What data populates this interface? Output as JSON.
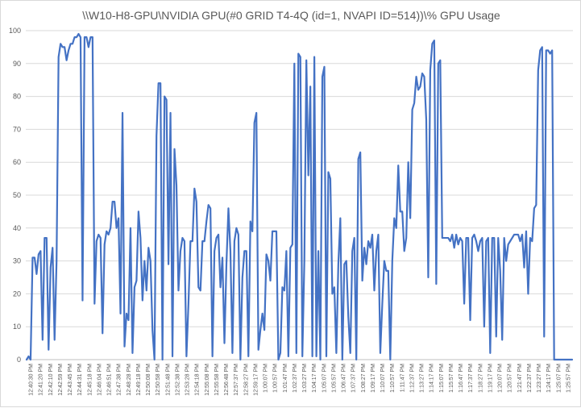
{
  "chart_data": {
    "type": "line",
    "title": "\\\\W10-H8-GPU\\NVIDIA GPU(#0 GRID T4-4Q (id=1, NVAPI ID=514))\\% GPU Usage",
    "xlabel": "",
    "ylabel": "",
    "ylim": [
      0,
      100
    ],
    "yticks": [
      0,
      10,
      20,
      30,
      40,
      50,
      60,
      70,
      80,
      90,
      100
    ],
    "grid": true,
    "legend": "none",
    "color": "#4472c4",
    "x_tick_labels": [
      "12:40:30 PM",
      "12:41:20 PM",
      "12:42:10 PM",
      "12:42:59 PM",
      "12:43:45 PM",
      "12:44:31 PM",
      "12:45:18 PM",
      "12:46:04 PM",
      "12:46:51 PM",
      "12:47:38 PM",
      "12:48:28 PM",
      "12:49:18 PM",
      "12:50:08 PM",
      "12:50:58 PM",
      "12:51:48 PM",
      "12:52:38 PM",
      "12:53:28 PM",
      "12:54:18 PM",
      "12:55:08 PM",
      "12:55:58 PM",
      "12:56:48 PM",
      "12:57:37 PM",
      "12:58:27 PM",
      "12:59:17 PM",
      "1:00:07 PM",
      "1:00:57 PM",
      "1:01:47 PM",
      "1:02:37 PM",
      "1:03:27 PM",
      "1:04:17 PM",
      "1:05:07 PM",
      "1:05:57 PM",
      "1:06:47 PM",
      "1:07:37 PM",
      "1:08:27 PM",
      "1:09:17 PM",
      "1:10:07 PM",
      "1:10:57 PM",
      "1:11:47 PM",
      "1:12:37 PM",
      "1:13:27 PM",
      "1:14:17 PM",
      "1:15:07 PM",
      "1:15:57 PM",
      "1:16:47 PM",
      "1:17:37 PM",
      "1:18:27 PM",
      "1:19:17 PM",
      "1:20:07 PM",
      "1:20:57 PM",
      "1:21:47 PM",
      "1:22:37 PM",
      "1:23:27 PM",
      "1:24:17 PM",
      "1:25:07 PM",
      "1:25:57 PM"
    ],
    "series": [
      {
        "values": [
          0,
          1,
          0,
          31,
          31,
          26,
          32,
          33,
          6,
          37,
          37,
          3,
          28,
          34,
          6,
          30,
          92,
          96,
          95,
          95,
          91,
          94,
          96,
          96,
          98,
          98,
          99,
          98,
          18,
          98,
          98,
          95,
          98,
          98,
          17,
          36,
          38,
          37,
          8,
          35,
          39,
          38,
          40,
          48,
          48,
          40,
          43,
          14,
          75,
          4,
          14,
          12,
          40,
          2,
          22,
          24,
          45,
          37,
          18,
          30,
          21,
          34,
          30,
          9,
          0,
          68,
          84,
          84,
          0,
          80,
          79,
          29,
          75,
          1,
          64,
          53,
          21,
          33,
          37,
          36,
          1,
          17,
          36,
          36,
          52,
          48,
          22,
          21,
          36,
          36,
          42,
          47,
          46,
          1,
          33,
          37,
          38,
          22,
          31,
          5,
          29,
          46,
          33,
          2,
          36,
          40,
          38,
          0,
          25,
          33,
          33,
          1,
          42,
          39,
          72,
          75,
          3,
          9,
          14,
          9,
          32,
          30,
          24,
          39,
          39,
          39,
          0,
          2,
          22,
          21,
          33,
          1,
          34,
          35,
          90,
          2,
          93,
          92,
          1,
          30,
          91,
          56,
          83,
          1,
          92,
          1,
          33,
          0,
          86,
          89,
          1,
          57,
          55,
          20,
          22,
          2,
          29,
          43,
          0,
          29,
          30,
          13,
          2,
          33,
          37,
          0,
          61,
          63,
          24,
          34,
          29,
          36,
          34,
          38,
          21,
          33,
          38,
          2,
          17,
          30,
          27,
          27,
          0,
          30,
          43,
          40,
          59,
          45,
          45,
          33,
          37,
          60,
          43,
          76,
          78,
          86,
          82,
          83,
          87,
          86,
          73,
          25,
          88,
          96,
          97,
          23,
          90,
          91,
          37,
          37,
          37,
          37,
          36,
          38,
          34,
          38,
          35,
          37,
          36,
          17,
          37,
          37,
          12,
          37,
          38,
          36,
          33,
          36,
          37,
          10,
          36,
          37,
          2,
          37,
          37,
          7,
          37,
          27,
          6,
          37,
          30,
          35,
          36,
          37,
          38,
          38,
          38,
          36,
          38,
          28,
          39,
          20,
          37,
          36,
          46,
          47,
          88,
          94,
          95,
          7,
          94,
          94,
          93,
          94,
          0,
          0,
          0,
          0,
          0,
          0,
          0,
          0,
          0,
          0
        ]
      }
    ]
  }
}
